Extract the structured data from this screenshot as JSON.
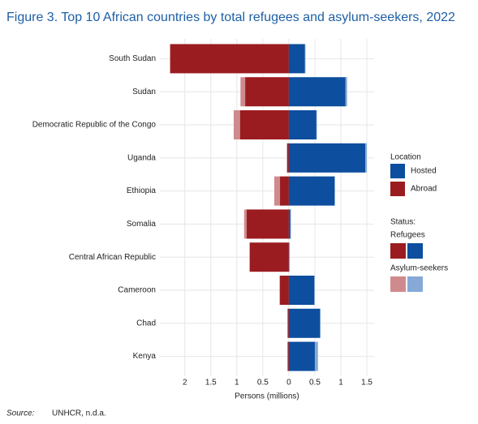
{
  "chart_data": {
    "type": "diverging_bar",
    "title": "Figure 3. Top 10 African countries by total refugees and asylum-seekers, 2022",
    "x_label": "Persons (millions)",
    "source_label": "Source:",
    "source": "UNHCR, n.d.a.",
    "legend_location_title": "Location",
    "legend_status_title": "Status:",
    "categories": [
      "South Sudan",
      "Sudan",
      "Democratic Republic of the Congo",
      "Uganda",
      "Ethiopia",
      "Somalia",
      "Central African Republic",
      "Cameroon",
      "Chad",
      "Kenya"
    ],
    "series": [
      {
        "location": "Abroad",
        "status": "Refugees",
        "color": "#9b1c20",
        "values": [
          -2.28,
          -0.84,
          -0.94,
          -0.03,
          -0.17,
          -0.81,
          -0.75,
          -0.17,
          -0.02,
          -0.02
        ]
      },
      {
        "location": "Abroad",
        "status": "Asylum-seekers",
        "color": "#cf8a8d",
        "values": [
          -0.01,
          -0.09,
          -0.12,
          -0.01,
          -0.11,
          -0.05,
          -0.01,
          -0.01,
          -0.01,
          -0.01
        ]
      },
      {
        "location": "Hosted",
        "status": "Refugees",
        "color": "#0d4e9e",
        "values": [
          0.31,
          1.09,
          0.53,
          1.47,
          0.88,
          0.03,
          0.01,
          0.49,
          0.6,
          0.5
        ]
      },
      {
        "location": "Hosted",
        "status": "Asylum-seekers",
        "color": "#86a9d6",
        "values": [
          0.01,
          0.03,
          0.01,
          0.03,
          0.01,
          0.01,
          0.0,
          0.01,
          0.01,
          0.06
        ]
      }
    ],
    "xlim": [
      -2.48,
      1.64
    ],
    "xticks": [
      {
        "value": -2,
        "label": "2"
      },
      {
        "value": -1.5,
        "label": "1.5"
      },
      {
        "value": -1,
        "label": "1"
      },
      {
        "value": -0.5,
        "label": "0.5"
      },
      0,
      0.5,
      1,
      1.5
    ],
    "grid": true
  }
}
